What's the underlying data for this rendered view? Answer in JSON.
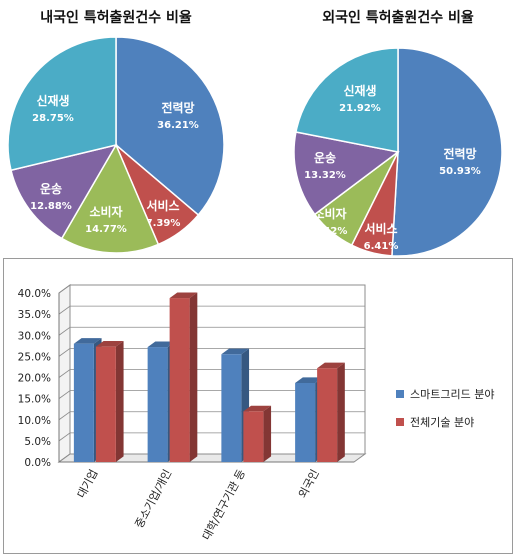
{
  "colors": {
    "전력망": "#4F81BD",
    "서비스": "#C0504D",
    "소비자": "#9BBB59",
    "운송": "#8064A2",
    "신재생": "#4BACC6",
    "series1": "#4F81BD",
    "series2": "#C0504D"
  },
  "chart_data": [
    {
      "type": "pie",
      "title": "내국인 특허출원건수 비율",
      "slices": [
        {
          "label": "전력망",
          "value": 36.21,
          "display": "36.21%"
        },
        {
          "label": "서비스",
          "value": 7.39,
          "display": "7.39%"
        },
        {
          "label": "소비자",
          "value": 14.77,
          "display": "14.77%"
        },
        {
          "label": "운송",
          "value": 12.88,
          "display": "12.88%"
        },
        {
          "label": "신재생",
          "value": 28.75,
          "display": "28.75%"
        }
      ]
    },
    {
      "type": "pie",
      "title": "외국인 특허출원건수 비율",
      "slices": [
        {
          "label": "전력망",
          "value": 50.93,
          "display": "50.93%"
        },
        {
          "label": "서비스",
          "value": 6.41,
          "display": "6.41%"
        },
        {
          "label": "소비자",
          "value": 7.42,
          "display": "7.42%"
        },
        {
          "label": "운송",
          "value": 13.32,
          "display": "13.32%"
        },
        {
          "label": "신재생",
          "value": 21.92,
          "display": "21.92%"
        }
      ]
    },
    {
      "type": "bar",
      "categories": [
        "대기업",
        "중소기업/개인",
        "대학/연구기관 등",
        "외국인"
      ],
      "series": [
        {
          "name": "스마트그리드 분야",
          "values": [
            28.0,
            27.2,
            25.5,
            18.7
          ]
        },
        {
          "name": "전체기술 분야",
          "values": [
            27.3,
            38.8,
            12.0,
            22.2
          ]
        }
      ],
      "ylim": [
        0,
        40
      ],
      "yticks": [
        "0.0%",
        "5.0%",
        "10.0%",
        "15.0%",
        "20.0%",
        "25.0%",
        "30.0%",
        "35.0%",
        "40.0%"
      ],
      "legend": "right"
    }
  ]
}
